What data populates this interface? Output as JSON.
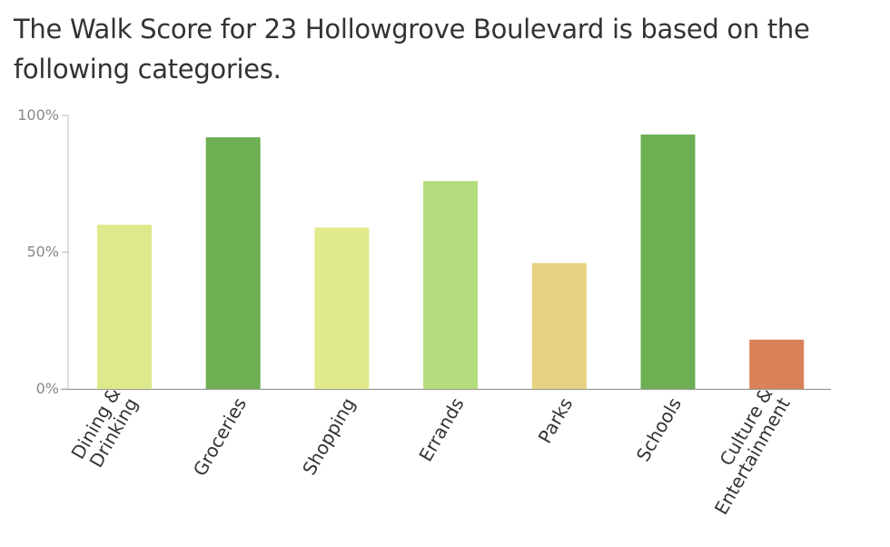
{
  "heading": "The Walk Score for 23 Hollowgrove Boulevard is based on the following categories.",
  "chart_data": {
    "type": "bar",
    "categories": [
      [
        "Dining &",
        "Drinking"
      ],
      [
        "Groceries"
      ],
      [
        "Shopping"
      ],
      [
        "Errands"
      ],
      [
        "Parks"
      ],
      [
        "Schools"
      ],
      [
        "Culture &",
        "Entertainment"
      ]
    ],
    "values": [
      60,
      92,
      59,
      76,
      46,
      93,
      18
    ],
    "colors": [
      "#dde98a",
      "#6daf52",
      "#e1ea8c",
      "#b3dc7c",
      "#e6d182",
      "#6daf52",
      "#d98157"
    ],
    "yticks": [
      {
        "value": 0,
        "label": "0%"
      },
      {
        "value": 50,
        "label": "50%"
      },
      {
        "value": 100,
        "label": "100%"
      }
    ],
    "ylim": [
      0,
      100
    ]
  }
}
